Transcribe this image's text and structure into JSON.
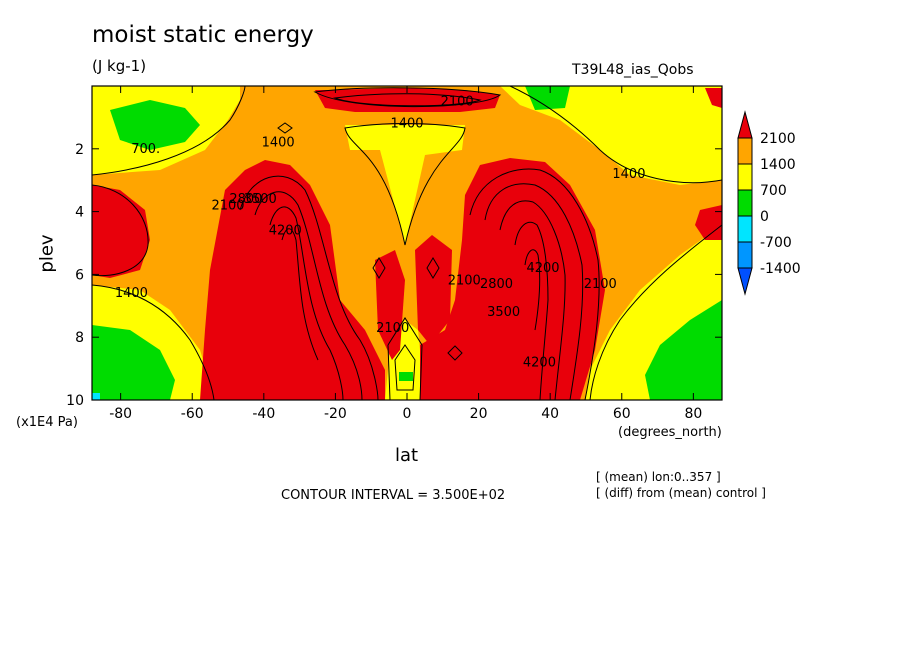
{
  "chart_data": {
    "type": "contour",
    "title": "moist static energy",
    "units": "(J kg-1)",
    "run_name": "T39L48_ias_Qobs",
    "xlabel": "lat",
    "x_units": "(degrees_north)",
    "ylabel": "plev",
    "y_units": "(x1E4 Pa)",
    "xlim": [
      -88,
      88
    ],
    "ylim": [
      10,
      0
    ],
    "x_ticks": [
      "-80",
      "-60",
      "-40",
      "-20",
      "0",
      "20",
      "40",
      "60",
      "80"
    ],
    "y_ticks": [
      "2",
      "4",
      "6",
      "8",
      "10"
    ],
    "contour_interval_text": "CONTOUR INTERVAL = 3.500E+02",
    "notes": [
      "[ (mean) lon:0..357 ]",
      "[ (diff) from (mean) control ]"
    ],
    "colorbar": {
      "labels": [
        "2100",
        "1400",
        "700",
        "0",
        "-700",
        "-1400"
      ],
      "colors": [
        "#e8000b",
        "#ffa500",
        "#ffff00",
        "#00dc00",
        "#00e5ff",
        "#0096ff",
        "#0050ff"
      ]
    },
    "contour_labels": [
      {
        "text": "2100",
        "lat": 14,
        "plev": 0.5
      },
      {
        "text": "1400",
        "lat": 0,
        "plev": 1.2
      },
      {
        "text": "700.",
        "lat": -73,
        "plev": 2.0
      },
      {
        "text": "1400",
        "lat": -36,
        "plev": 1.8
      },
      {
        "text": "1400",
        "lat": 62,
        "plev": 2.8
      },
      {
        "text": "2100",
        "lat": -50,
        "plev": 3.8
      },
      {
        "text": "2800",
        "lat": -45,
        "plev": 3.6
      },
      {
        "text": "3500",
        "lat": -41,
        "plev": 3.6
      },
      {
        "text": "4200",
        "lat": -34,
        "plev": 4.6
      },
      {
        "text": "1400",
        "lat": -77,
        "plev": 6.6
      },
      {
        "text": "2100",
        "lat": -4,
        "plev": 7.7
      },
      {
        "text": "2100",
        "lat": 16,
        "plev": 6.2
      },
      {
        "text": "2800",
        "lat": 25,
        "plev": 6.3
      },
      {
        "text": "3500",
        "lat": 27,
        "plev": 7.2
      },
      {
        "text": "4200",
        "lat": 38,
        "plev": 5.8
      },
      {
        "text": "2100",
        "lat": 54,
        "plev": 6.3
      },
      {
        "text": "4200",
        "lat": 37,
        "plev": 8.8
      }
    ]
  }
}
